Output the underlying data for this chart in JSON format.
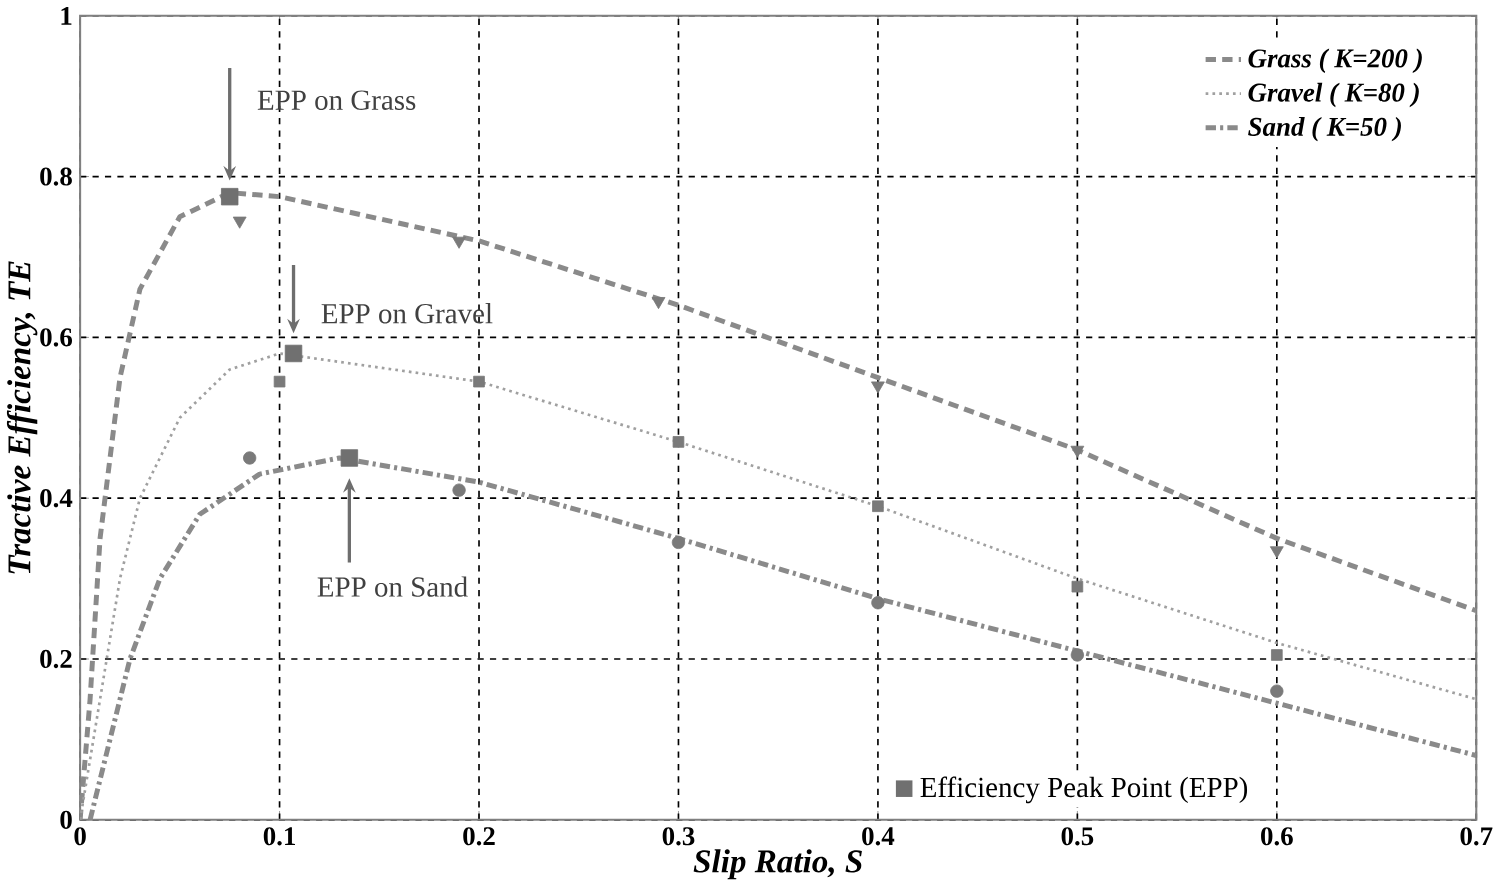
{
  "chart_data": {
    "type": "line",
    "xlabel": "Slip Ratio, S",
    "ylabel": "Tractive Efficiency, TE",
    "xlim": [
      0,
      0.7
    ],
    "ylim": [
      0,
      1
    ],
    "xticks": [
      0,
      0.1,
      0.2,
      0.3,
      0.4,
      0.5,
      0.6,
      0.7
    ],
    "yticks": [
      0,
      0.2,
      0.4,
      0.6,
      0.8,
      1
    ],
    "grid": true,
    "legend": "right",
    "series": [
      {
        "name": "Grass ( K=200 )",
        "color": "#8a8a8a",
        "line_style": "dashed",
        "marker": "none",
        "x": [
          0,
          0.005,
          0.01,
          0.02,
          0.03,
          0.05,
          0.075,
          0.1,
          0.2,
          0.3,
          0.4,
          0.5,
          0.6,
          0.7
        ],
        "values": [
          0,
          0.15,
          0.35,
          0.55,
          0.66,
          0.75,
          0.78,
          0.775,
          0.72,
          0.64,
          0.55,
          0.46,
          0.35,
          0.26
        ]
      },
      {
        "name": "Gravel ( K=80 )",
        "color": "#a0a0a0",
        "line_style": "dotted",
        "marker": "none",
        "x": [
          0,
          0.01,
          0.02,
          0.03,
          0.05,
          0.075,
          0.1,
          0.2,
          0.3,
          0.4,
          0.5,
          0.6,
          0.7
        ],
        "values": [
          0,
          0.15,
          0.3,
          0.4,
          0.5,
          0.56,
          0.58,
          0.545,
          0.47,
          0.39,
          0.3,
          0.22,
          0.15
        ]
      },
      {
        "name": "Sand ( K=50 )",
        "color": "#8a8a8a",
        "line_style": "dashdotted",
        "marker": "none",
        "x": [
          0.005,
          0.015,
          0.025,
          0.04,
          0.06,
          0.09,
          0.13,
          0.2,
          0.3,
          0.4,
          0.5,
          0.6,
          0.7
        ],
        "values": [
          0,
          0.1,
          0.2,
          0.3,
          0.38,
          0.43,
          0.45,
          0.42,
          0.35,
          0.275,
          0.21,
          0.145,
          0.08
        ]
      },
      {
        "type": "scatter",
        "color": "#7a7a7a",
        "marker": "triangle",
        "x": [
          0.08,
          0.19,
          0.29,
          0.4,
          0.5,
          0.6
        ],
        "values": [
          0.745,
          0.72,
          0.645,
          0.54,
          0.46,
          0.335
        ]
      },
      {
        "type": "scatter",
        "color": "#7a7a7a",
        "marker": "square",
        "x": [
          0.1,
          0.2,
          0.3,
          0.4,
          0.5,
          0.6
        ],
        "values": [
          0.545,
          0.545,
          0.47,
          0.39,
          0.29,
          0.205
        ]
      },
      {
        "type": "scatter",
        "color": "#7a7a7a",
        "marker": "circle",
        "x": [
          0.085,
          0.19,
          0.3,
          0.4,
          0.5,
          0.6
        ],
        "values": [
          0.45,
          0.41,
          0.345,
          0.27,
          0.205,
          0.16
        ]
      },
      {
        "type": "scatter",
        "name": "Efficiency Peak Point (EPP)",
        "color": "#707070",
        "marker": "square",
        "x": [
          0.075,
          0.107,
          0.135
        ],
        "values": [
          0.775,
          0.58,
          0.45
        ]
      }
    ],
    "annotations": [
      "EPP on Grass",
      "EPP on Gravel",
      "EPP on Sand"
    ]
  }
}
